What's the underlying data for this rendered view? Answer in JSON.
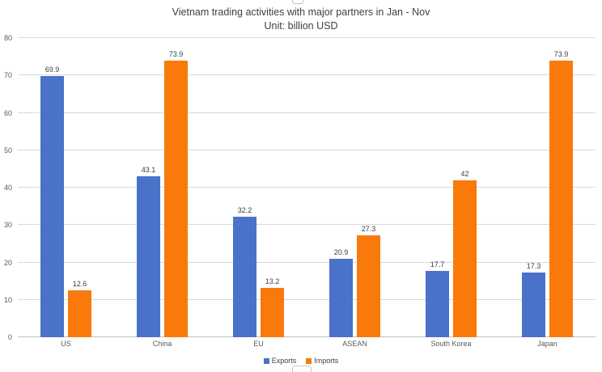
{
  "chart_data": {
    "type": "bar",
    "title": "Vietnam trading activities with major partners in Jan - Nov",
    "subtitle": "Unit: billion USD",
    "categories": [
      "US",
      "China",
      "EU",
      "ASEAN",
      "South Korea",
      "Japan"
    ],
    "series": [
      {
        "name": "Exports",
        "color": "#4A72C8",
        "values": [
          69.9,
          43.1,
          32.2,
          20.9,
          17.7,
          17.3
        ]
      },
      {
        "name": "Imports",
        "color": "#F97A0A",
        "values": [
          12.6,
          73.9,
          13.2,
          27.3,
          42,
          73.9
        ]
      }
    ],
    "ylim": [
      0,
      80
    ],
    "yticks": [
      0,
      10,
      20,
      30,
      40,
      50,
      60,
      70,
      80
    ],
    "grid": true,
    "legend_position": "bottom",
    "value_labels": true
  },
  "colors": {
    "exports": "#4A72C8",
    "imports": "#F97A0A",
    "gridline": "#d9d9d9",
    "axis_line": "#bfbfbf",
    "title_text": "#404040",
    "axis_text": "#595959"
  }
}
